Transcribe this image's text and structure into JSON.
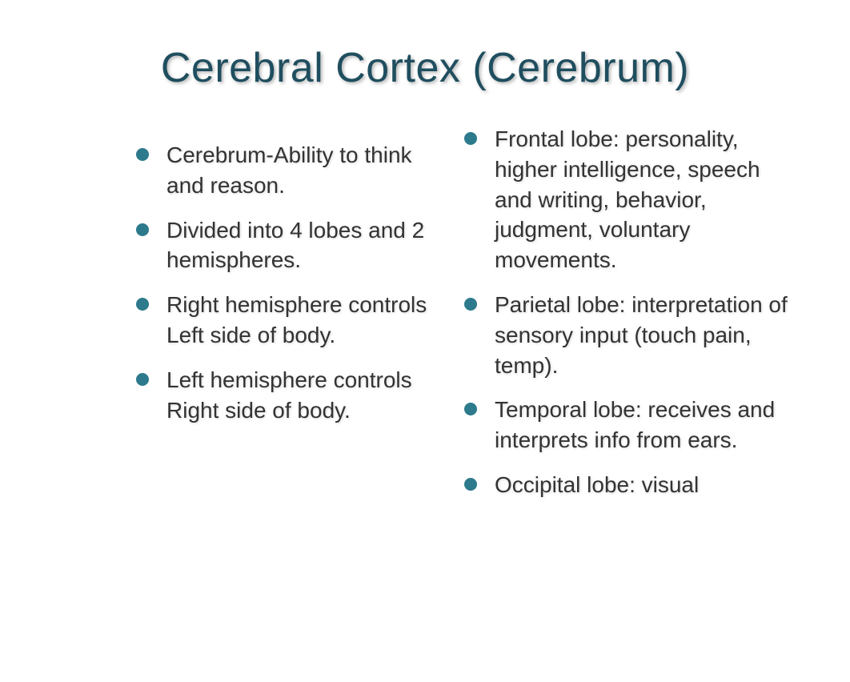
{
  "title": "Cerebral Cortex (Cerebrum)",
  "leftColumn": {
    "items": [
      "Cerebrum-Ability to think and reason.",
      "Divided into 4 lobes and 2 hemispheres.",
      "Right hemisphere controls Left side of body.",
      "Left hemisphere controls Right side of body."
    ]
  },
  "rightColumn": {
    "items": [
      "Frontal lobe: personality, higher intelligence,  speech and writing, behavior, judgment, voluntary movements.",
      "Parietal lobe: interpretation of sensory input (touch pain, temp).",
      "Temporal lobe: receives and interprets info from ears.",
      "Occipital lobe: visual"
    ]
  },
  "colors": {
    "title": "#1f4e5f",
    "bullet": "#2d7a8c",
    "text": "#333333",
    "background": "#ffffff"
  },
  "typography": {
    "titleFontSize": 52,
    "bodyFontSize": 28,
    "fontFamily": "Arial, Helvetica, sans-serif"
  }
}
